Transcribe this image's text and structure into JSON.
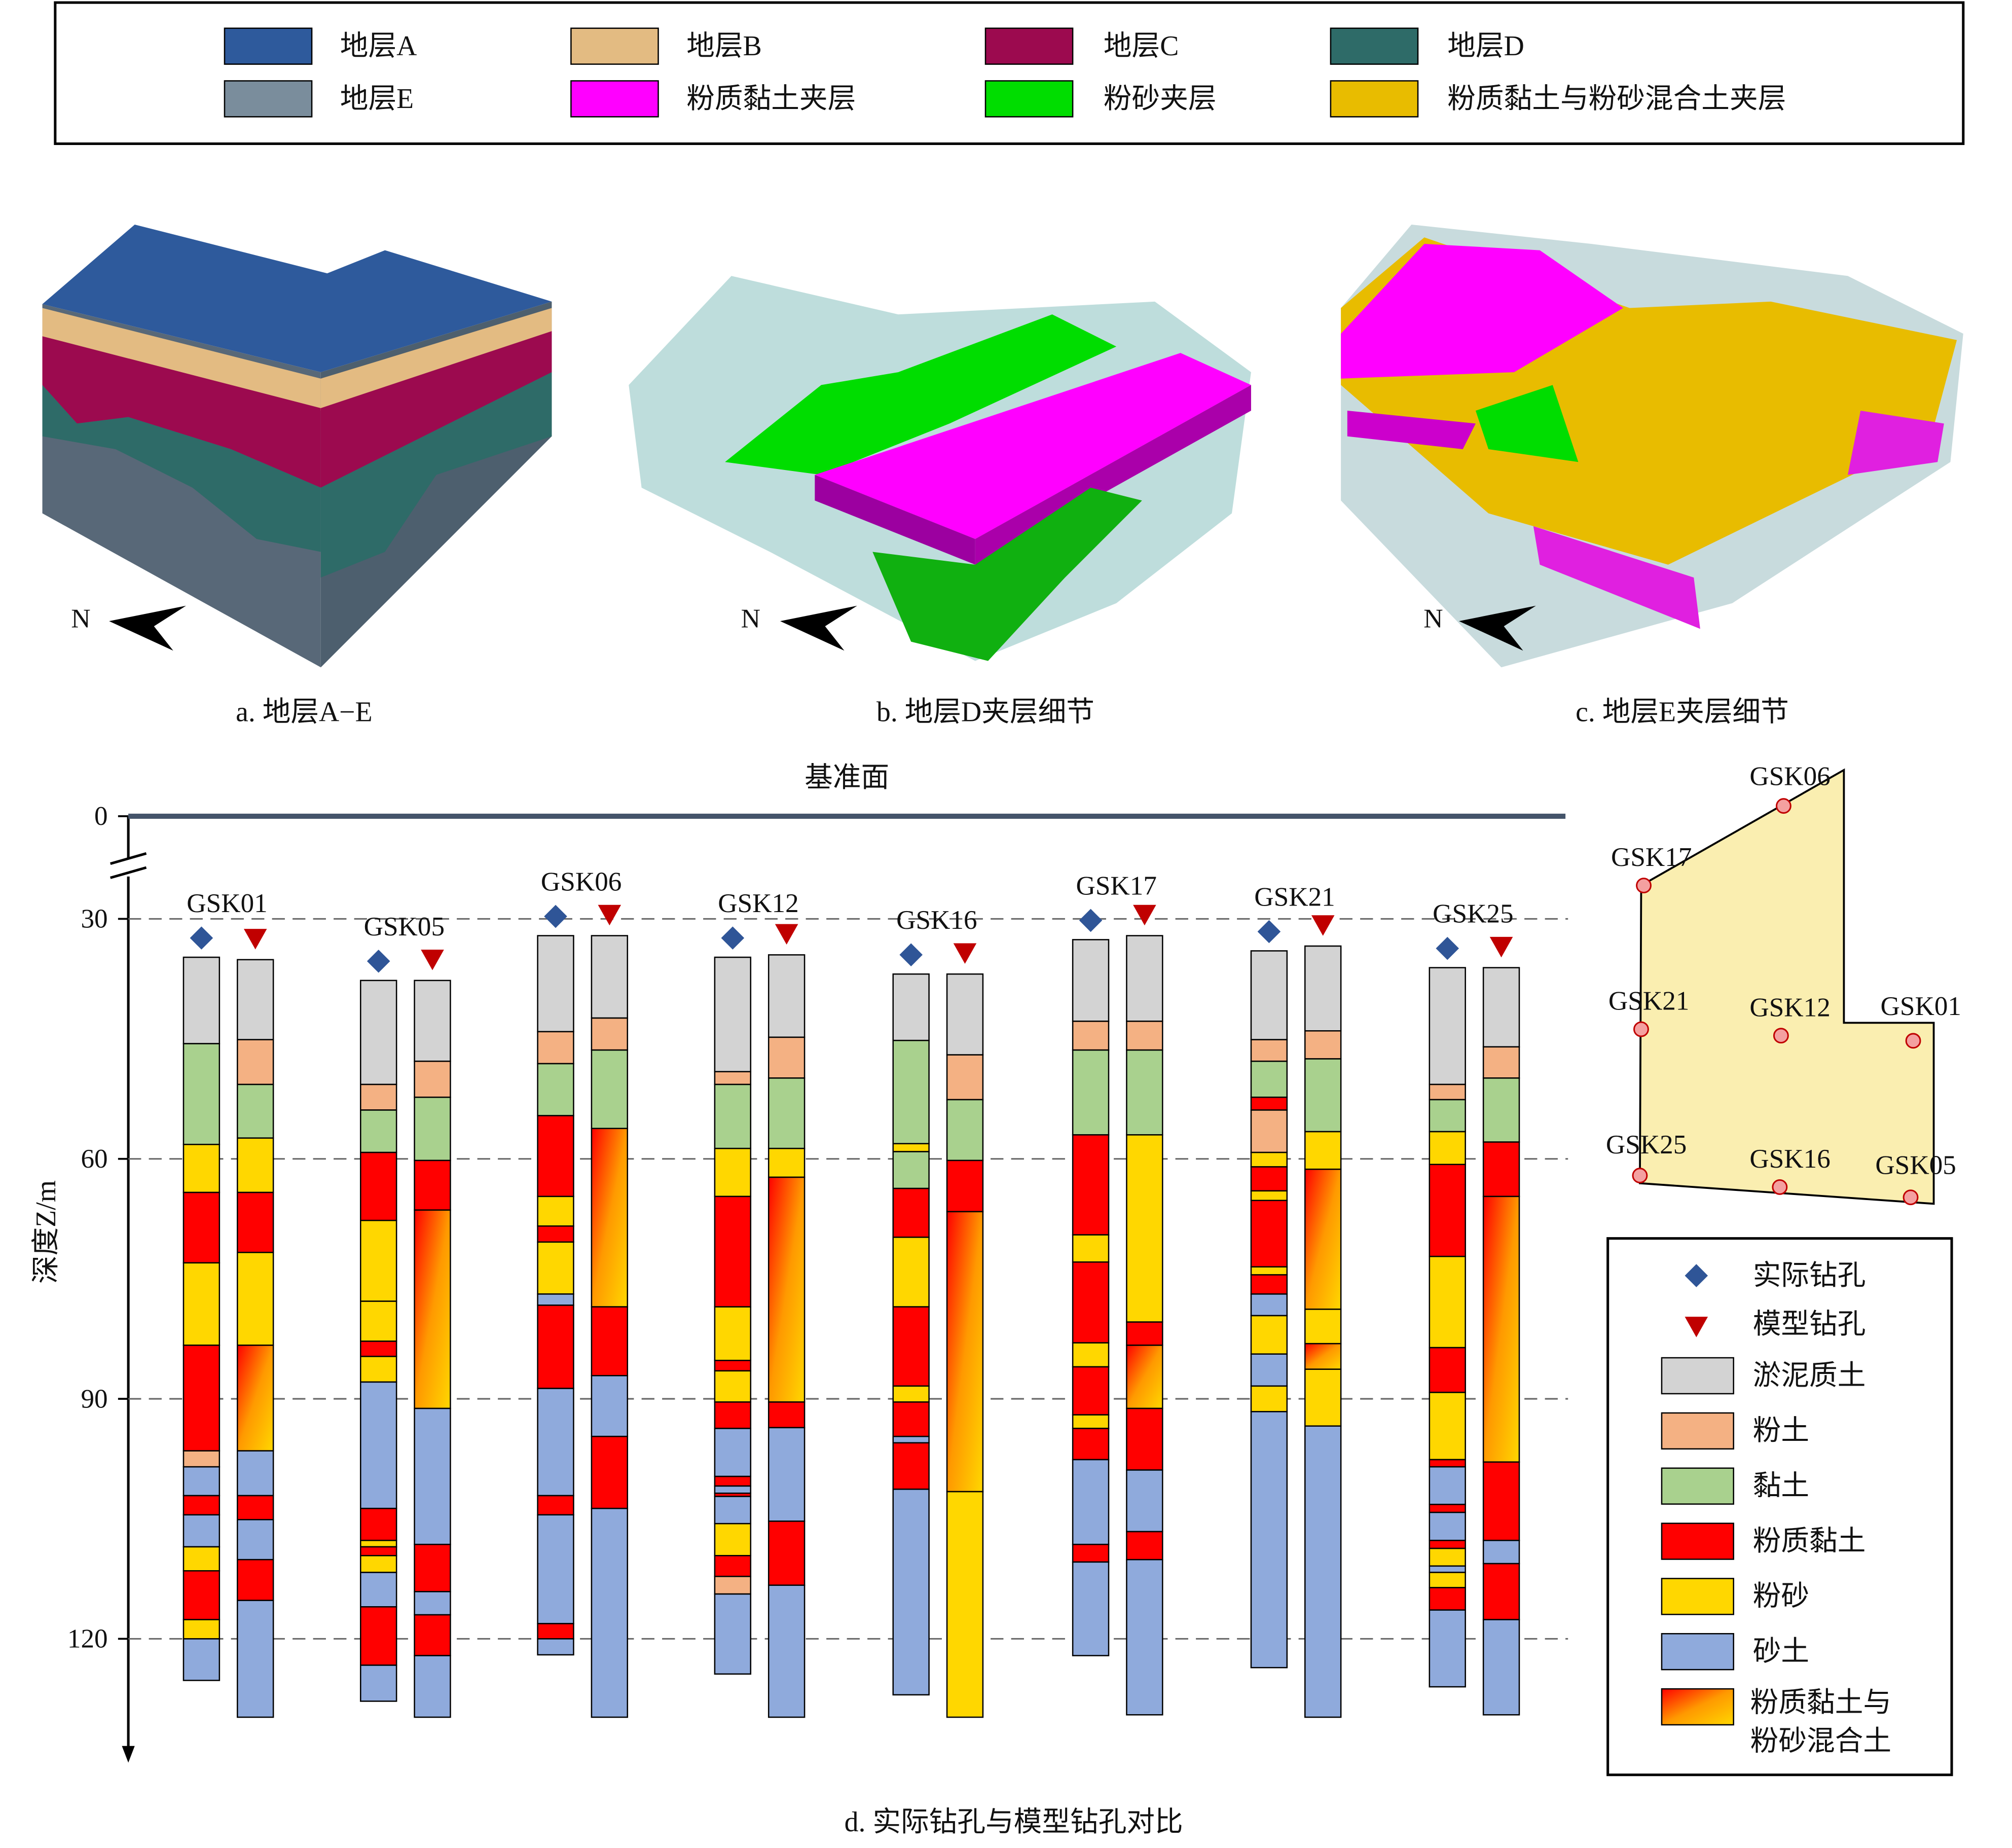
{
  "strata_legend": [
    {
      "name": "地层A",
      "color": "#2e5a9c"
    },
    {
      "name": "地层B",
      "color": "#e3bb82"
    },
    {
      "name": "地层C",
      "color": "#9c0a4f"
    },
    {
      "name": "地层D",
      "color": "#2e6b68"
    },
    {
      "name": "地层E",
      "color": "#7a8d9c"
    },
    {
      "name": "粉质黏土夹层",
      "color": "#ff00ff"
    },
    {
      "name": "粉砂夹层",
      "color": "#00dd00"
    },
    {
      "name": "粉质黏土与粉砂混合土夹层",
      "color": "#e8bc00"
    }
  ],
  "panels": [
    {
      "caption": "a. 地层A−E"
    },
    {
      "caption": "b. 地层D夹层细节"
    },
    {
      "caption": "c. 地层E夹层细节"
    }
  ],
  "north": "N",
  "chart_data": {
    "type": "borehole",
    "title": "d. 实际钻孔与模型钻孔对比",
    "datum": "基准面",
    "y_label": "深度Z/m",
    "ylim": [
      0,
      135
    ],
    "yticks": [
      0,
      30,
      60,
      90,
      120
    ],
    "axis_break": true,
    "grid": true,
    "legend": "bottom-right",
    "markers": [
      {
        "name": "实际钻孔",
        "color": "#2f5597"
      },
      {
        "name": "模型钻孔",
        "color": "#c00000"
      }
    ],
    "soils": [
      {
        "name": "淤泥质土",
        "color": "#d3d3d3"
      },
      {
        "name": "粉土",
        "color": "#f4b183"
      },
      {
        "name": "黏土",
        "color": "#a9d18e"
      },
      {
        "name": "粉质黏土",
        "color": "#ff0000"
      },
      {
        "name": "粉砂",
        "color": "#ffd700"
      },
      {
        "name": "砂土",
        "color": "#8faadc"
      },
      {
        "name": "粉质黏土与粉砂混合土",
        "color": [
          "#ff0000",
          "#ff9900",
          "#ffd700"
        ]
      }
    ],
    "boreholes": [
      {
        "name": "GSK01",
        "actual": {
          "soils": [
            "淤泥质土",
            "黏土",
            "粉砂",
            "粉质黏土",
            "粉砂",
            "粉质黏土",
            "粉土",
            "砂土",
            "粉质黏土",
            "砂土",
            "粉砂",
            "粉质黏土",
            "粉砂",
            "砂土"
          ],
          "depths": [
            34.8,
            45.6,
            58.2,
            64.2,
            73.0,
            83.3,
            96.5,
            98.5,
            102.1,
            104.5,
            108.5,
            111.5,
            117.6,
            120.0,
            125.2
          ]
        },
        "model": {
          "soils": [
            "淤泥质土",
            "粉土",
            "黏土",
            "粉砂",
            "粉质黏土",
            "粉砂",
            "粉质黏土与粉砂混合土",
            "砂土",
            "粉质黏土",
            "砂土",
            "粉质黏土",
            "砂土"
          ],
          "depths": [
            35.1,
            45.1,
            50.7,
            57.4,
            64.2,
            71.7,
            83.3,
            96.5,
            102.1,
            105.1,
            110.1,
            115.2,
            129.8
          ]
        }
      },
      {
        "name": "GSK05",
        "actual": {
          "soils": [
            "淤泥质土",
            "粉土",
            "黏土",
            "粉质黏土",
            "粉砂",
            "粉砂",
            "粉质黏土",
            "粉砂",
            "砂土",
            "粉质黏土",
            "粉砂",
            "粉质黏土",
            "粉砂",
            "砂土",
            "粉质黏土",
            "砂土"
          ],
          "depths": [
            37.7,
            50.7,
            53.9,
            59.2,
            67.7,
            77.8,
            82.8,
            84.7,
            87.9,
            103.7,
            107.7,
            108.5,
            109.6,
            111.7,
            116.0,
            123.3,
            127.8
          ]
        },
        "model": {
          "soils": [
            "淤泥质土",
            "粉土",
            "黏土",
            "粉质黏土",
            "粉质黏土与粉砂混合土",
            "砂土",
            "粉质黏土",
            "砂土",
            "粉质黏土",
            "砂土"
          ],
          "depths": [
            37.7,
            47.8,
            52.3,
            60.2,
            66.4,
            91.2,
            108.2,
            114.1,
            117.0,
            122.1,
            129.8
          ]
        }
      },
      {
        "name": "GSK06",
        "actual": {
          "soils": [
            "淤泥质土",
            "粉土",
            "黏土",
            "粉质黏土",
            "粉砂",
            "粉质黏土",
            "粉砂",
            "砂土",
            "粉质黏土",
            "砂土",
            "粉质黏土",
            "砂土",
            "粉质黏土",
            "砂土"
          ],
          "depths": [
            32.1,
            44.1,
            48.1,
            54.6,
            64.7,
            68.4,
            70.4,
            76.9,
            78.3,
            88.7,
            102.1,
            104.5,
            118.1,
            120.0,
            122.0
          ]
        },
        "model": {
          "soils": [
            "淤泥质土",
            "粉土",
            "黏土",
            "粉质黏土与粉砂混合土",
            "粉质黏土",
            "砂土",
            "粉质黏土",
            "砂土"
          ],
          "depths": [
            32.1,
            42.4,
            46.4,
            56.2,
            78.5,
            87.1,
            94.7,
            103.7,
            129.8
          ]
        }
      },
      {
        "name": "GSK12",
        "actual": {
          "soils": [
            "淤泥质土",
            "粉土",
            "黏土",
            "粉砂",
            "粉质黏土",
            "粉砂",
            "粉质黏土",
            "粉砂",
            "粉质黏土",
            "砂土",
            "粉质黏土",
            "砂土",
            "粉质黏土",
            "砂土",
            "粉砂",
            "粉质黏土",
            "粉土",
            "砂土"
          ],
          "depths": [
            34.8,
            49.1,
            50.7,
            58.7,
            64.7,
            78.5,
            85.2,
            86.5,
            90.4,
            93.7,
            99.7,
            100.9,
            101.8,
            102.2,
            105.6,
            109.6,
            112.2,
            114.4,
            124.4
          ]
        },
        "model": {
          "soils": [
            "淤泥质土",
            "粉土",
            "黏土",
            "粉砂",
            "粉质黏土与粉砂混合土",
            "粉质黏土",
            "砂土",
            "粉质黏土",
            "砂土"
          ],
          "depths": [
            34.5,
            44.8,
            49.9,
            58.7,
            62.3,
            90.4,
            93.6,
            105.3,
            113.3,
            129.8
          ]
        }
      },
      {
        "name": "GSK16",
        "actual": {
          "soils": [
            "淤泥质土",
            "黏土",
            "粉砂",
            "黏土",
            "粉质黏土",
            "粉砂",
            "粉质黏土",
            "粉砂",
            "粉质黏土",
            "砂土",
            "粉质黏土",
            "砂土"
          ],
          "depths": [
            36.9,
            45.2,
            58.1,
            59.1,
            63.7,
            69.8,
            78.5,
            88.4,
            90.4,
            94.7,
            95.5,
            101.3,
            127.0
          ]
        },
        "model": {
          "soils": [
            "淤泥质土",
            "粉土",
            "黏土",
            "粉质黏土",
            "粉质黏土与粉砂混合土",
            "粉砂"
          ],
          "depths": [
            36.9,
            47.0,
            52.6,
            60.2,
            66.6,
            101.6,
            129.8
          ]
        }
      },
      {
        "name": "GSK17",
        "actual": {
          "soils": [
            "淤泥质土",
            "粉土",
            "黏土",
            "粉质黏土",
            "粉砂",
            "粉质黏土",
            "粉砂",
            "粉质黏土",
            "粉砂",
            "粉质黏土",
            "砂土",
            "粉质黏土",
            "砂土"
          ],
          "depths": [
            32.6,
            42.8,
            46.4,
            57.0,
            69.5,
            72.9,
            83.0,
            86.0,
            92.0,
            93.7,
            97.6,
            108.2,
            110.4,
            122.1
          ]
        },
        "model": {
          "soils": [
            "淤泥质土",
            "粉土",
            "黏土",
            "粉砂",
            "粉质黏土",
            "粉质黏土与粉砂混合土",
            "粉质黏土",
            "砂土",
            "粉质黏土",
            "砂土"
          ],
          "depths": [
            32.1,
            42.8,
            46.4,
            57.0,
            80.4,
            83.3,
            91.2,
            98.9,
            106.6,
            110.1,
            129.5
          ]
        }
      },
      {
        "name": "GSK21",
        "actual": {
          "soils": [
            "淤泥质土",
            "粉土",
            "黏土",
            "粉质黏土",
            "粉土",
            "粉砂",
            "粉质黏土",
            "粉砂",
            "粉质黏土",
            "粉砂",
            "粉质黏土",
            "砂土",
            "粉砂",
            "砂土",
            "粉砂",
            "砂土"
          ],
          "depths": [
            34.0,
            45.1,
            47.8,
            52.3,
            53.9,
            59.2,
            61.0,
            64.0,
            65.2,
            73.5,
            74.5,
            76.9,
            79.6,
            84.4,
            88.4,
            91.6,
            123.6
          ]
        },
        "model": {
          "soils": [
            "淤泥质土",
            "粉土",
            "黏土",
            "粉砂",
            "粉质黏土与粉砂混合土",
            "粉砂",
            "粉质黏土与粉砂混合土",
            "粉砂",
            "砂土"
          ],
          "depths": [
            33.4,
            44.0,
            47.5,
            56.6,
            61.3,
            78.8,
            83.1,
            86.3,
            93.4,
            129.8
          ]
        }
      },
      {
        "name": "GSK25",
        "actual": {
          "soils": [
            "淤泥质土",
            "粉土",
            "黏土",
            "粉砂",
            "粉质黏土",
            "粉砂",
            "粉质黏土",
            "粉砂",
            "粉质黏土",
            "砂土",
            "粉质黏土",
            "砂土",
            "粉质黏土",
            "粉砂",
            "砂土",
            "粉砂",
            "粉质黏土",
            "砂土"
          ],
          "depths": [
            36.1,
            50.7,
            52.6,
            56.6,
            60.7,
            72.2,
            83.6,
            89.2,
            97.6,
            98.5,
            103.2,
            104.2,
            107.7,
            108.7,
            110.9,
            111.7,
            113.6,
            116.4,
            126.0
          ]
        },
        "model": {
          "soils": [
            "淤泥质土",
            "粉土",
            "黏土",
            "粉质黏土",
            "粉质黏土与粉砂混合土",
            "粉质黏土",
            "砂土",
            "粉质黏土",
            "砂土"
          ],
          "depths": [
            36.1,
            46.0,
            49.9,
            57.9,
            64.7,
            97.9,
            107.7,
            110.6,
            117.6,
            129.5
          ]
        }
      }
    ]
  }
}
